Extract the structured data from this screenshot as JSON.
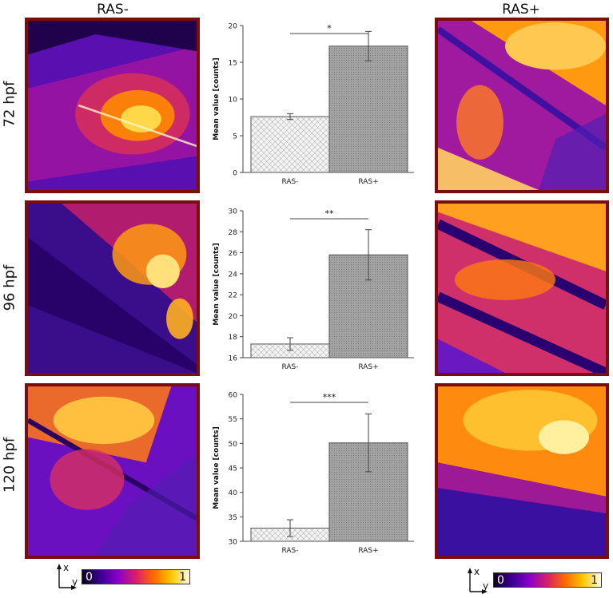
{
  "columns": {
    "left_title": "RAS-",
    "right_title": "RAS+"
  },
  "rows": [
    {
      "label": "72 hpf"
    },
    {
      "label": "96 hpf"
    },
    {
      "label": "120 hpf"
    }
  ],
  "colorbar": {
    "min_label": "0",
    "max_label": "1",
    "colors": [
      "#0a0020",
      "#3a0090",
      "#8a00c8",
      "#d81f6a",
      "#ff6a00",
      "#ffc800",
      "#fffbe6"
    ]
  },
  "axes_indicator": {
    "x": "x",
    "y": "y"
  },
  "panel_colors": {
    "border": "#7a0e0e",
    "bar_light": "#f2f2f2",
    "bar_dark": "#9a9a9a"
  },
  "chart_data": [
    {
      "type": "bar",
      "categories": [
        "RAS-",
        "RAS+"
      ],
      "values": [
        7.6,
        17.2
      ],
      "errors": [
        0.4,
        2.0
      ],
      "ylabel": "Mean value [counts]",
      "ylim": [
        0,
        20
      ],
      "yticks": [
        0,
        5,
        10,
        15,
        20
      ],
      "significance": "*"
    },
    {
      "type": "bar",
      "categories": [
        "RAS-",
        "RAS+"
      ],
      "values": [
        17.3,
        25.8
      ],
      "errors": [
        0.6,
        2.4
      ],
      "ylabel": "Mean value [counts]",
      "ylim": [
        16,
        30
      ],
      "yticks": [
        16,
        18,
        20,
        22,
        24,
        26,
        28,
        30
      ],
      "significance": "**"
    },
    {
      "type": "bar",
      "categories": [
        "RAS-",
        "RAS+"
      ],
      "values": [
        32.7,
        50.1
      ],
      "errors": [
        1.7,
        5.9
      ],
      "ylabel": "Mean value [counts]",
      "ylim": [
        30,
        60
      ],
      "yticks": [
        30,
        35,
        40,
        45,
        50,
        55,
        60
      ],
      "significance": "***"
    }
  ]
}
